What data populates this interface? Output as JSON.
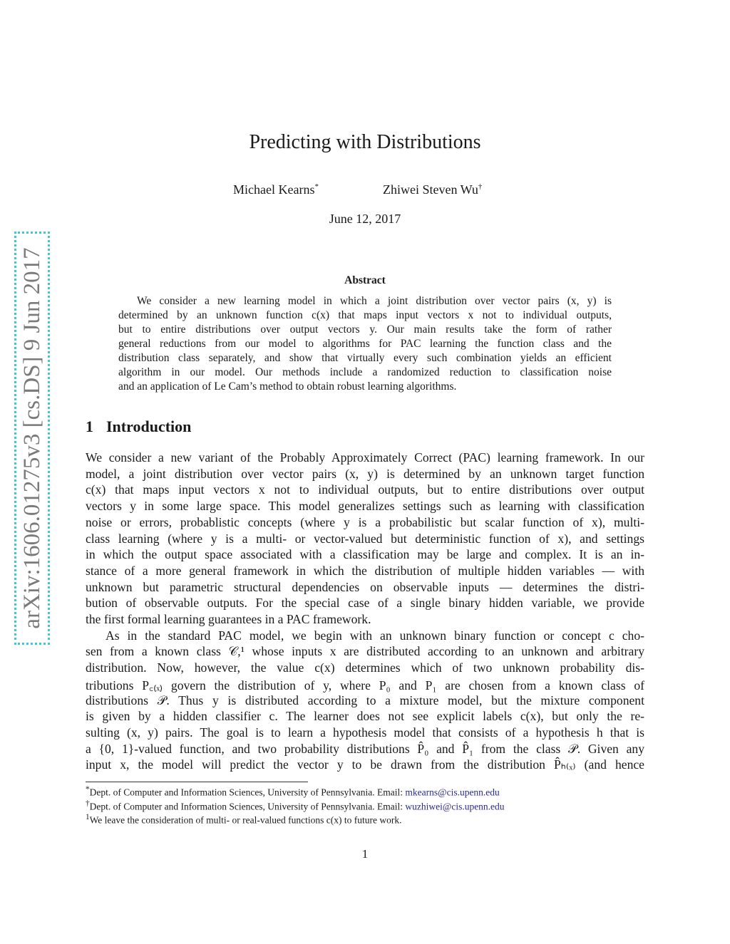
{
  "arxiv_stamp": "arXiv:1606.01275v3  [cs.DS]  9 Jun 2017",
  "title": "Predicting with Distributions",
  "authors": [
    {
      "name": "Michael Kearns",
      "mark": "*"
    },
    {
      "name": "Zhiwei Steven Wu",
      "mark": "†"
    }
  ],
  "date": "June 12, 2017",
  "abstract": {
    "heading": "Abstract",
    "lines": [
      "We consider a new learning model in which a joint distribution over vector pairs (x, y) is",
      "determined by an unknown function c(x) that maps input vectors x not to individual outputs,",
      "but to entire distributions over output vectors y.  Our main results take the form of rather",
      "general reductions from our model to algorithms for PAC learning the function class and the",
      "distribution class separately, and show that virtually every such combination yields an efficient",
      "algorithm in our model. Our methods include a randomized reduction to classification noise",
      "and an application of Le Cam’s method to obtain robust learning algorithms."
    ]
  },
  "section": {
    "number": "1",
    "title": "Introduction"
  },
  "paragraphs": [
    [
      "We consider a new variant of the Probably Approximately Correct (PAC) learning framework. In our",
      "model, a joint distribution over vector pairs (x, y) is determined by an unknown target function",
      "c(x) that maps input vectors x not to individual outputs, but to entire distributions over output",
      "vectors y in some large space. This model generalizes settings such as learning with classification",
      "noise or errors, probablistic concepts (where y is a probabilistic but scalar function of x), multi-",
      "class learning (where y is a multi- or vector-valued but deterministic function of x), and settings",
      "in which the output space associated with a classification may be large and complex. It is an in-",
      "stance of a more general framework in which the distribution of multiple hidden variables — with",
      "unknown but parametric structural dependencies on observable inputs — determines the distri-",
      "bution of observable outputs. For the special case of a single binary hidden variable, we provide",
      "the first formal learning guarantees in a PAC framework."
    ],
    [
      "As in the standard PAC model, we begin with an unknown binary function or concept c cho-",
      "sen from a known class 𝒞,¹ whose inputs x are distributed according to an unknown and arbitrary",
      "distribution. Now, however, the value c(x) determines which of two unknown probability dis-",
      "tributions P꜀₍ₓ₎ govern the distribution of y, where P₀ and P₁ are chosen from a known class of",
      "distributions 𝒫. Thus y is distributed according to a mixture model, but the mixture component",
      "is given by a hidden classifier c. The learner does not see explicit labels c(x), but only the re-",
      "sulting (x, y) pairs. The goal is to learn a hypothesis model that consists of a hypothesis h that is",
      "a {0, 1}-valued function, and two probability distributions P̂₀ and P̂₁ from the class 𝒫. Given any",
      "input x, the model will predict the vector y to be drawn from the distribution P̂ₕ₍ₓ₎ (and hence"
    ]
  ],
  "footnotes": [
    {
      "mark": "*",
      "text": "Dept. of Computer and Information Sciences, University of Pennsylvania. Email: ",
      "email": "mkearns@cis.upenn.edu"
    },
    {
      "mark": "†",
      "text": "Dept. of Computer and Information Sciences, University of Pennsylvania. Email: ",
      "email": "wuzhiwei@cis.upenn.edu"
    },
    {
      "mark": "1",
      "text": "We leave the consideration of multi- or real-valued functions c(x) to future work."
    }
  ],
  "page_number": "1"
}
